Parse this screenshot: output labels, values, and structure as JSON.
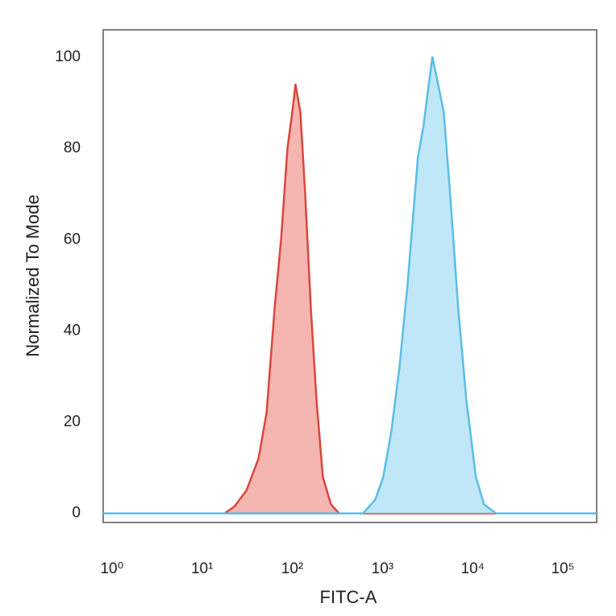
{
  "chart_data": {
    "type": "histogram-overlay",
    "x_label": "FITC-A",
    "y_label": "Normalized To Mode",
    "x_log": true,
    "xlim": [
      0.8,
      237000
    ],
    "xticks": [
      {
        "value": 1,
        "label": "10⁰"
      },
      {
        "value": 10,
        "label": "10¹"
      },
      {
        "value": 100,
        "label": "10²"
      },
      {
        "value": 1000,
        "label": "10³"
      },
      {
        "value": 10000,
        "label": "10⁴"
      },
      {
        "value": 100000,
        "label": "10⁵"
      }
    ],
    "ylim": [
      -2,
      106
    ],
    "yticks": [
      0,
      20,
      40,
      60,
      80,
      100
    ],
    "grid": false,
    "series": [
      {
        "color": "#d9473f",
        "fill_color": "#f3a8a3",
        "x": [
          0.8,
          17.8,
          22.8,
          31.0,
          42.2,
          51.8,
          63.7,
          75.0,
          88.4,
          100,
          108.6,
          122.8,
          139.0,
          160.3,
          185.2,
          218.1,
          268,
          330,
          20000
        ],
        "values": [
          0,
          0,
          1.5,
          5,
          12,
          22,
          45,
          60,
          80,
          88,
          94,
          88,
          70,
          45,
          25,
          8,
          2,
          0,
          0
        ]
      },
      {
        "color": "#5bbde6",
        "fill_color": "#b5e3f7",
        "x": [
          0.8,
          610,
          676,
          831,
          1021,
          1254,
          1541,
          1893,
          2184,
          2471,
          2853,
          3162,
          3580,
          4048,
          4771,
          5623,
          6906,
          8490,
          10860,
          13340,
          18160,
          237000
        ],
        "values": [
          0,
          0,
          1,
          3,
          8,
          18,
          32,
          50,
          65,
          78,
          85,
          92,
          100,
          95,
          88,
          70,
          45,
          25,
          8,
          2,
          0,
          0
        ]
      }
    ]
  }
}
